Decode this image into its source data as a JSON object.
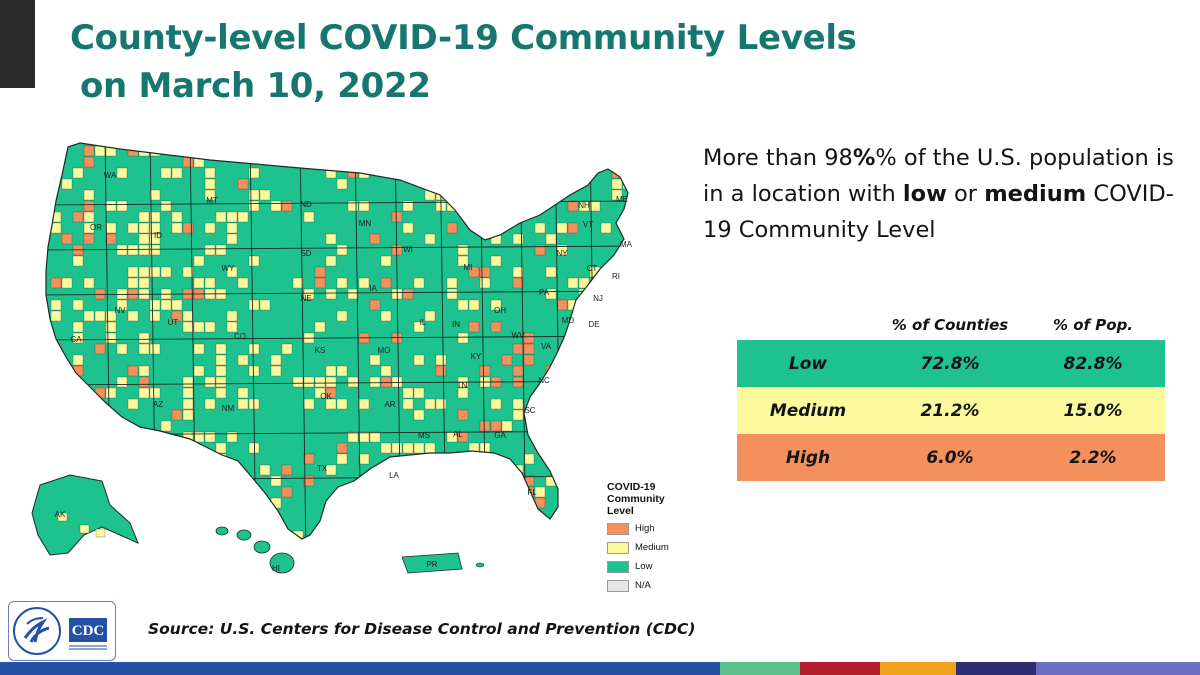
{
  "title": {
    "line1": "County-level COVID-19 Community Levels",
    "line2": "on March 10, 2022"
  },
  "headline": {
    "part1": "More than 98",
    "part2": "% of the U.S. population is in a location with ",
    "bold_low": "low",
    "part3": " or ",
    "bold_medium": "medium",
    "part4": " COVID-19 Community Level"
  },
  "stats_table": {
    "columns": [
      "",
      "% of Counties",
      "% of Pop."
    ],
    "rows": [
      {
        "level": "Low",
        "counties": "72.8%",
        "population": "82.8%",
        "color": "#1dc28e"
      },
      {
        "level": "Medium",
        "counties": "21.2%",
        "population": "15.0%",
        "color": "#fdfa9e"
      },
      {
        "level": "High",
        "counties": "6.0%",
        "population": "2.2%",
        "color": "#f4905c"
      }
    ]
  },
  "map": {
    "state_labels": [
      "WA",
      "OR",
      "CA",
      "NV",
      "ID",
      "MT",
      "WY",
      "UT",
      "AZ",
      "NM",
      "CO",
      "ND",
      "SD",
      "NE",
      "KS",
      "OK",
      "TX",
      "MN",
      "IA",
      "MO",
      "AR",
      "LA",
      "WI",
      "IL",
      "MS",
      "MI",
      "IN",
      "KY",
      "TN",
      "AL",
      "OH",
      "GA",
      "FL",
      "WV",
      "VA",
      "NC",
      "SC",
      "PA",
      "NY",
      "VT",
      "NH",
      "ME",
      "MA",
      "CT",
      "RI",
      "NJ",
      "DE",
      "MD",
      "AK",
      "HI",
      "PR"
    ],
    "colors": {
      "low": "#1dc28e",
      "medium": "#fdfa9e",
      "high": "#f4905c",
      "na": "#e6e6e6",
      "border": "#2a3a35"
    }
  },
  "legend": {
    "title_lines": [
      "COVID-19",
      "Community",
      "Level"
    ],
    "items": [
      {
        "label": "High",
        "color": "#f4905c"
      },
      {
        "label": "Medium",
        "color": "#fdfa9e"
      },
      {
        "label": "Low",
        "color": "#1dc28e"
      },
      {
        "label": "N/A",
        "color": "#e6e6e6"
      }
    ]
  },
  "source": "Source: U.S. Centers for Disease Control and Prevention (CDC)",
  "logo": {
    "text": "CDC",
    "color": "#2451a3"
  },
  "bottom_bar_colors": [
    "#2451a3",
    "#5cbf8c",
    "#b41f2b",
    "#f1a21d",
    "#2e2d73",
    "#6c6fc4"
  ]
}
